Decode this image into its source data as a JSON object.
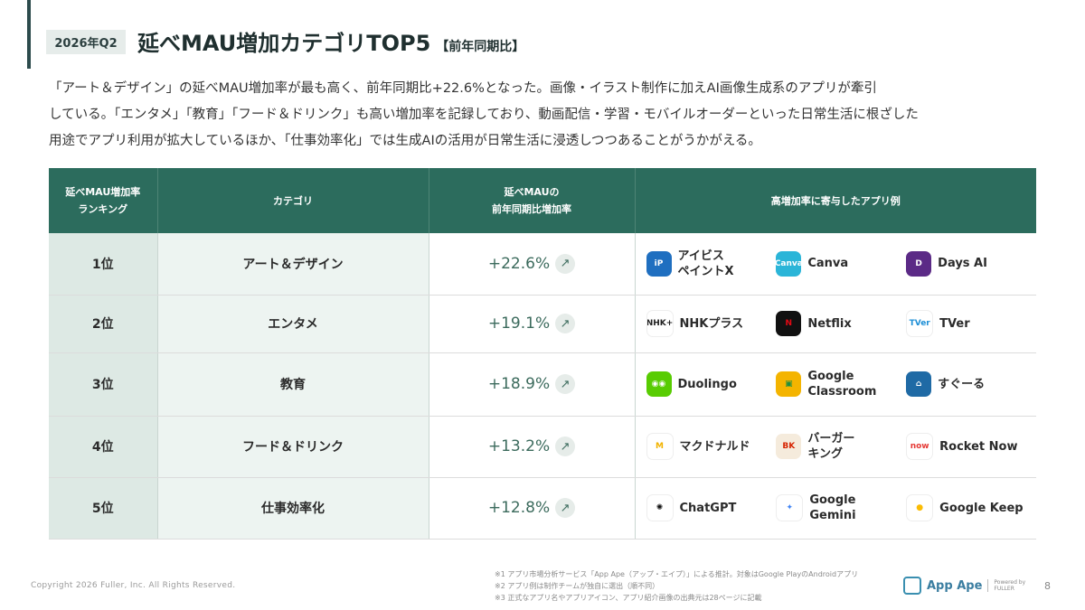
{
  "header": {
    "period": "2026年Q2",
    "title": "延べMAU増加カテゴリTOP5",
    "title_note": "【前年同期比】"
  },
  "lead": [
    "「アート＆デザイン」の延べMAU増加率が最も高く、前年同期比+22.6%となった。画像・イラスト制作に加えAI画像生成系のアプリが牽引",
    "している。「エンタメ」「教育」「フード＆ドリンク」も高い増加率を記録しており、動画配信・学習・モバイルオーダーといった日常生活に根ざした",
    "用途でアプリ利用が拡大しているほか、「仕事効率化」では生成AIの活用が日常生活に浸透しつつあることがうかがえる。"
  ],
  "table": {
    "headers": {
      "rank": "延べMAU増加率\nランキング",
      "category": "カテゴリ",
      "growth": "延べMAUの\n前年同期比増加率",
      "apps": "高増加率に寄与したアプリ例"
    },
    "rows": [
      {
        "rank": "1位",
        "category": "アート＆デザイン",
        "growth": "+22.6%",
        "apps": [
          {
            "name": "アイビス\nペイントX",
            "icon": "ibis-paint-icon",
            "bg": "#1f6fc0",
            "fg": "#ffffff",
            "glyph": "iP"
          },
          {
            "name": "Canva",
            "icon": "canva-icon",
            "bg": "#2bb5d8",
            "fg": "#ffffff",
            "glyph": "Canva"
          },
          {
            "name": "Days AI",
            "icon": "days-ai-icon",
            "bg": "#5b2a86",
            "fg": "#ffffff",
            "glyph": "D"
          }
        ]
      },
      {
        "rank": "2位",
        "category": "エンタメ",
        "growth": "+19.1%",
        "apps": [
          {
            "name": "NHKプラス",
            "icon": "nhk-plus-icon",
            "bg": "#ffffff",
            "fg": "#222222",
            "glyph": "NHK+"
          },
          {
            "name": "Netflix",
            "icon": "netflix-icon",
            "bg": "#111111",
            "fg": "#e50914",
            "glyph": "N"
          },
          {
            "name": "TVer",
            "icon": "tver-icon",
            "bg": "#ffffff",
            "fg": "#1e8fd6",
            "glyph": "TVer"
          }
        ]
      },
      {
        "rank": "3位",
        "category": "教育",
        "growth": "+18.9%",
        "apps": [
          {
            "name": "Duolingo",
            "icon": "duolingo-icon",
            "bg": "#58cc02",
            "fg": "#ffffff",
            "glyph": "◉◉"
          },
          {
            "name": "Google\nClassroom",
            "icon": "google-classroom-icon",
            "bg": "#f4b400",
            "fg": "#1e8e3e",
            "glyph": "▣"
          },
          {
            "name": "すぐーる",
            "icon": "sugooru-icon",
            "bg": "#1f6aa5",
            "fg": "#ffffff",
            "glyph": "⌂"
          }
        ]
      },
      {
        "rank": "4位",
        "category": "フード＆ドリンク",
        "growth": "+13.2%",
        "apps": [
          {
            "name": "マクドナルド",
            "icon": "mcdonalds-icon",
            "bg": "#ffffff",
            "fg": "#f2b300",
            "glyph": "M"
          },
          {
            "name": "バーガー\nキング",
            "icon": "burger-king-icon",
            "bg": "#f5ebdc",
            "fg": "#d62300",
            "glyph": "BK"
          },
          {
            "name": "Rocket Now",
            "icon": "rocket-now-icon",
            "bg": "#ffffff",
            "fg": "#e53935",
            "glyph": "now"
          }
        ]
      },
      {
        "rank": "5位",
        "category": "仕事効率化",
        "growth": "+12.8%",
        "apps": [
          {
            "name": "ChatGPT",
            "icon": "chatgpt-icon",
            "bg": "#ffffff",
            "fg": "#111111",
            "glyph": "✺"
          },
          {
            "name": "Google\nGemini",
            "icon": "google-gemini-icon",
            "bg": "#ffffff",
            "fg": "#4285f4",
            "glyph": "✦"
          },
          {
            "name": "Google Keep",
            "icon": "google-keep-icon",
            "bg": "#ffffff",
            "fg": "#fbbc04",
            "glyph": "●"
          }
        ]
      }
    ]
  },
  "growth_arrow": "↗",
  "footer": {
    "copyright": "Copyright 2026 Fuller, Inc. All Rights Reserved.",
    "notes": [
      "※1 アプリ市場分析サービス「App Ape（アップ・エイプ）」による推計。対象はGoogle PlayのAndroidアプリ",
      "※2 アプリ例は制作チームが独自に選出（順不同）",
      "※3 正式なアプリ名やアプリアイコン、アプリ紹介画像の出典元は28ページに記載"
    ],
    "brand": "App Ape",
    "powered_by": "Powered by",
    "brand_company": "FULLER",
    "page": "8"
  }
}
